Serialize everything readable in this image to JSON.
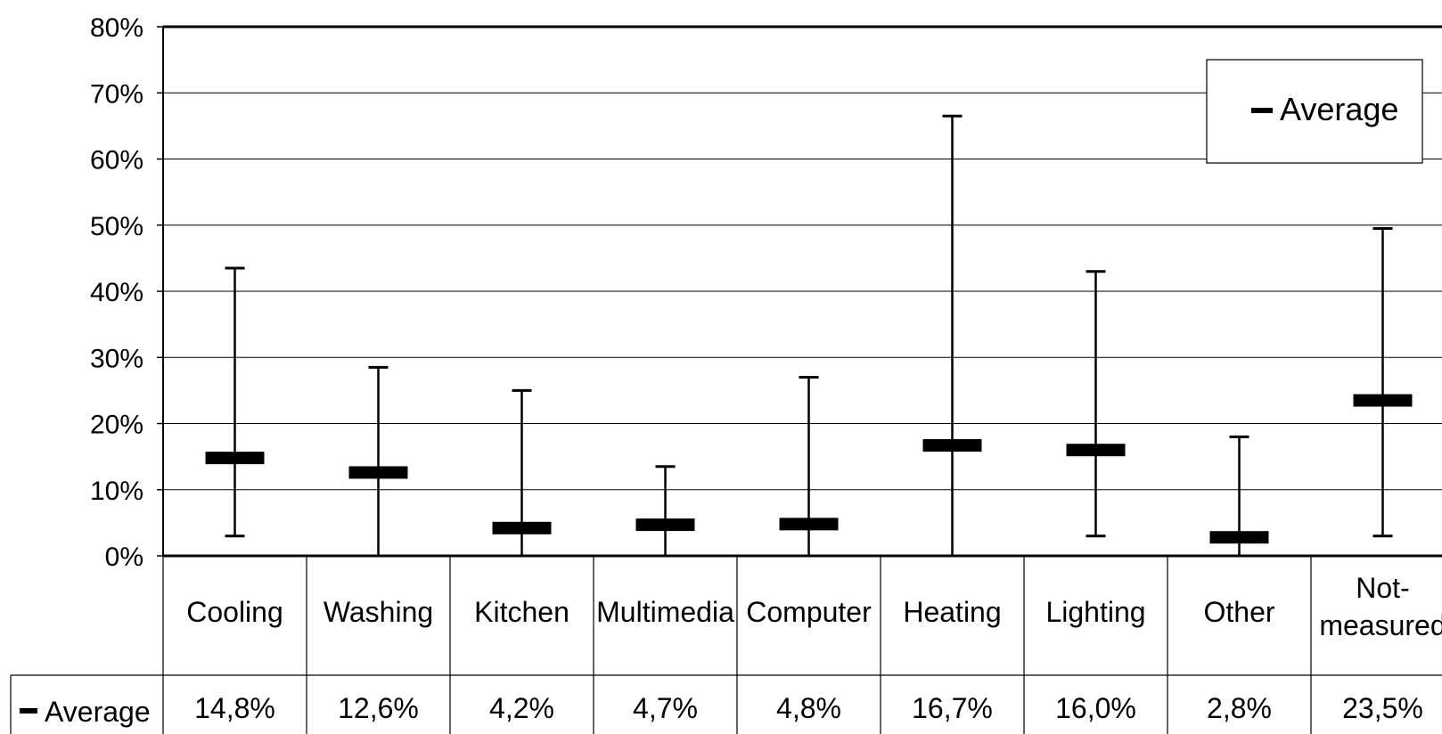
{
  "chart_data": {
    "type": "bar",
    "subtype": "range-with-average-markers",
    "categories": [
      "Cooling",
      "Washing",
      "Kitchen",
      "Multimedia",
      "Computer",
      "Heating",
      "Lighting",
      "Other",
      "Not-measured"
    ],
    "y_tick_labels": [
      "0%",
      "10%",
      "20%",
      "30%",
      "40%",
      "50%",
      "60%",
      "70%",
      "80%"
    ],
    "ylim": [
      0,
      80
    ],
    "grid": true,
    "legend_position": "top-right",
    "series": [
      {
        "name": "Average",
        "values": [
          14.8,
          12.6,
          4.2,
          4.7,
          4.8,
          16.7,
          16.0,
          2.8,
          23.5
        ],
        "labels": [
          "14,8%",
          "12,6%",
          "4,2%",
          "4,7%",
          "4,8%",
          "16,7%",
          "16,0%",
          "2,8%",
          "23,5%"
        ]
      }
    ],
    "ranges": {
      "min": [
        3,
        0,
        0,
        0,
        0,
        0,
        3,
        0,
        3
      ],
      "max": [
        43.5,
        28.5,
        25,
        13.5,
        27,
        66.5,
        43,
        18,
        49.5
      ]
    },
    "data_table": true
  }
}
